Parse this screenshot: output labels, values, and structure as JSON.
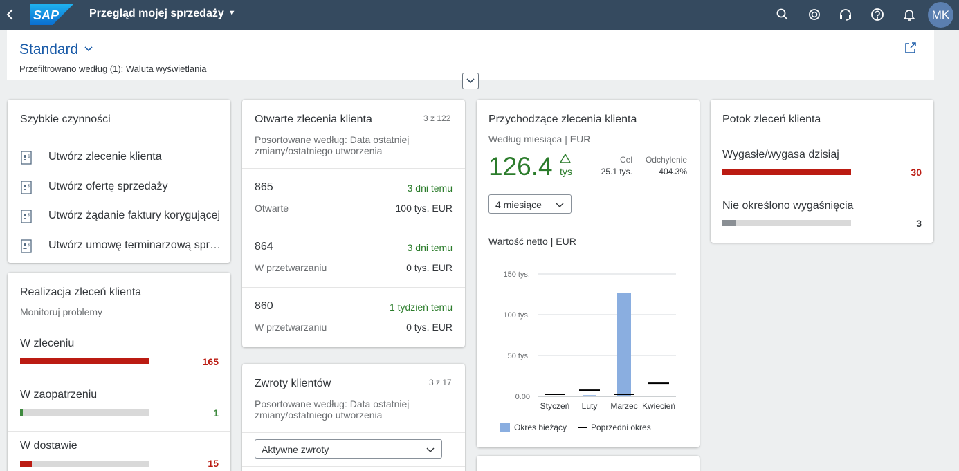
{
  "shell": {
    "app_title": "Przegląd mojej sprzedaży",
    "logo_text": "SAP",
    "avatar_initials": "MK",
    "icons": [
      "back-icon",
      "search-icon",
      "co-pilot-icon",
      "support-icon",
      "help-icon",
      "notification-icon"
    ]
  },
  "header": {
    "variant": "Standard",
    "filter_text": "Przefiltrowano według (1): Waluta wyświetlania"
  },
  "quick_actions": {
    "title": "Szybkie czynności",
    "items": [
      {
        "label": "Utwórz zlecenie klienta"
      },
      {
        "label": "Utwórz ofertę sprzedaży"
      },
      {
        "label": "Utwórz żądanie faktury korygującej"
      },
      {
        "label": "Utwórz umowę terminarzową sprzedaży"
      }
    ]
  },
  "fulfillment": {
    "title": "Realizacja zleceń klienta",
    "subtitle": "Monitoruj problemy",
    "items": [
      {
        "label": "W zleceniu",
        "value": "165",
        "fraction": 1.0,
        "color": "#bb1b12"
      },
      {
        "label": "W zaopatrzeniu",
        "value": "1",
        "fraction": 0.02,
        "color": "#3f8a3f"
      },
      {
        "label": "W dostawie",
        "value": "15",
        "fraction": 0.09,
        "color": "#bb1b12"
      }
    ]
  },
  "open_orders": {
    "title": "Otwarte zlecenia klienta",
    "count": "3 z 122",
    "subtitle": "Posortowane według: Data ostatniej zmiany/ostatniego utworzenia",
    "rows": [
      {
        "number": "865",
        "ago": "3 dni temu",
        "status": "Otwarte",
        "amount": "100 tys. EUR"
      },
      {
        "number": "864",
        "ago": "3 dni temu",
        "status": "W przetwarzaniu",
        "amount": "0 tys. EUR"
      },
      {
        "number": "860",
        "ago": "1 tydzień temu",
        "status": "W przetwarzaniu",
        "amount": "0 tys. EUR"
      }
    ]
  },
  "returns": {
    "title": "Zwroty klientów",
    "count": "3 z 17",
    "subtitle": "Posortowane według: Data ostatniej zmiany/ostatniego utworzenia",
    "select_value": "Aktywne zwroty"
  },
  "incoming": {
    "title": "Przychodzące zlecenia klienta",
    "subtitle": "Według miesiąca | EUR",
    "kpi_value": "126.4",
    "kpi_unit": "tys",
    "target_label": "Cel",
    "target_value": "25.1 tys.",
    "deviation_label": "Odchylenie",
    "deviation_value": "404.3%",
    "select_value": "4 miesiące",
    "chart_title": "Wartość netto | EUR"
  },
  "chart_data": {
    "type": "bar",
    "title": "Wartość netto | EUR",
    "categories": [
      "Styczeń",
      "Luty",
      "Marzec",
      "Kwiecień"
    ],
    "series": [
      {
        "name": "Okres bieżący",
        "values": [
          0.5,
          1.5,
          126.4,
          0
        ]
      },
      {
        "name": "Poprzedni okres",
        "values": [
          2.5,
          7.5,
          2.5,
          16
        ]
      }
    ],
    "y_ticks": [
      {
        "value": 0,
        "label": "0.00"
      },
      {
        "value": 50,
        "label": "50 tys."
      },
      {
        "value": 100,
        "label": "100 tys."
      },
      {
        "value": 150,
        "label": "150 tys."
      }
    ],
    "ylim": [
      0,
      150
    ],
    "grid": true,
    "legend": "bottom",
    "colors": {
      "current": "#8aaee0",
      "previous": "#000000"
    }
  },
  "flow": {
    "title": "Potok zleceń klienta",
    "items": [
      {
        "label": "Wygasłe/wygasa dzisiaj",
        "value": "30",
        "fraction": 1.0,
        "color": "#bb1b12",
        "value_color": "#bb1b12"
      },
      {
        "label": "Nie określono wygaśnięcia",
        "value": "3",
        "fraction": 0.1,
        "color": "#8a8f94",
        "value_color": "#32363a"
      }
    ]
  }
}
